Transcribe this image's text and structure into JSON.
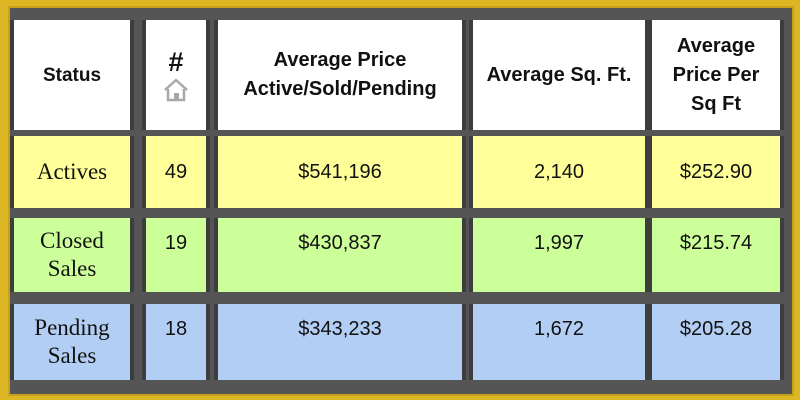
{
  "table": {
    "headers": {
      "status": "Status",
      "count": "#",
      "avg_price_line1": "Average Price",
      "avg_price_line2": "Active/Sold/Pending",
      "avg_sqft": "Average Sq. Ft.",
      "price_per_sqft_line1": "Average",
      "price_per_sqft_line2": "Price Per",
      "price_per_sqft_line3": "Sq Ft"
    },
    "count_icon": "house-icon",
    "rows": [
      {
        "status_line1": "Actives",
        "status_line2": "",
        "count": "49",
        "avg_price": "$541,196",
        "avg_sqft": "2,140",
        "price_per_sqft": "$252.90"
      },
      {
        "status_line1": "Closed",
        "status_line2": "Sales",
        "count": "19",
        "avg_price": "$430,837",
        "avg_sqft": "1,997",
        "price_per_sqft": "$215.74"
      },
      {
        "status_line1": "Pending",
        "status_line2": "Sales",
        "count": "18",
        "avg_price": "$343,233",
        "avg_sqft": "1,672",
        "price_per_sqft": "$205.28"
      }
    ],
    "colors": {
      "header_bg": "#ffffff",
      "actives_bg": "#ffff99",
      "closed_bg": "#ccff99",
      "pending_bg": "#b3cef4",
      "frame": "#555555",
      "outer_border": "#ddb624"
    }
  }
}
